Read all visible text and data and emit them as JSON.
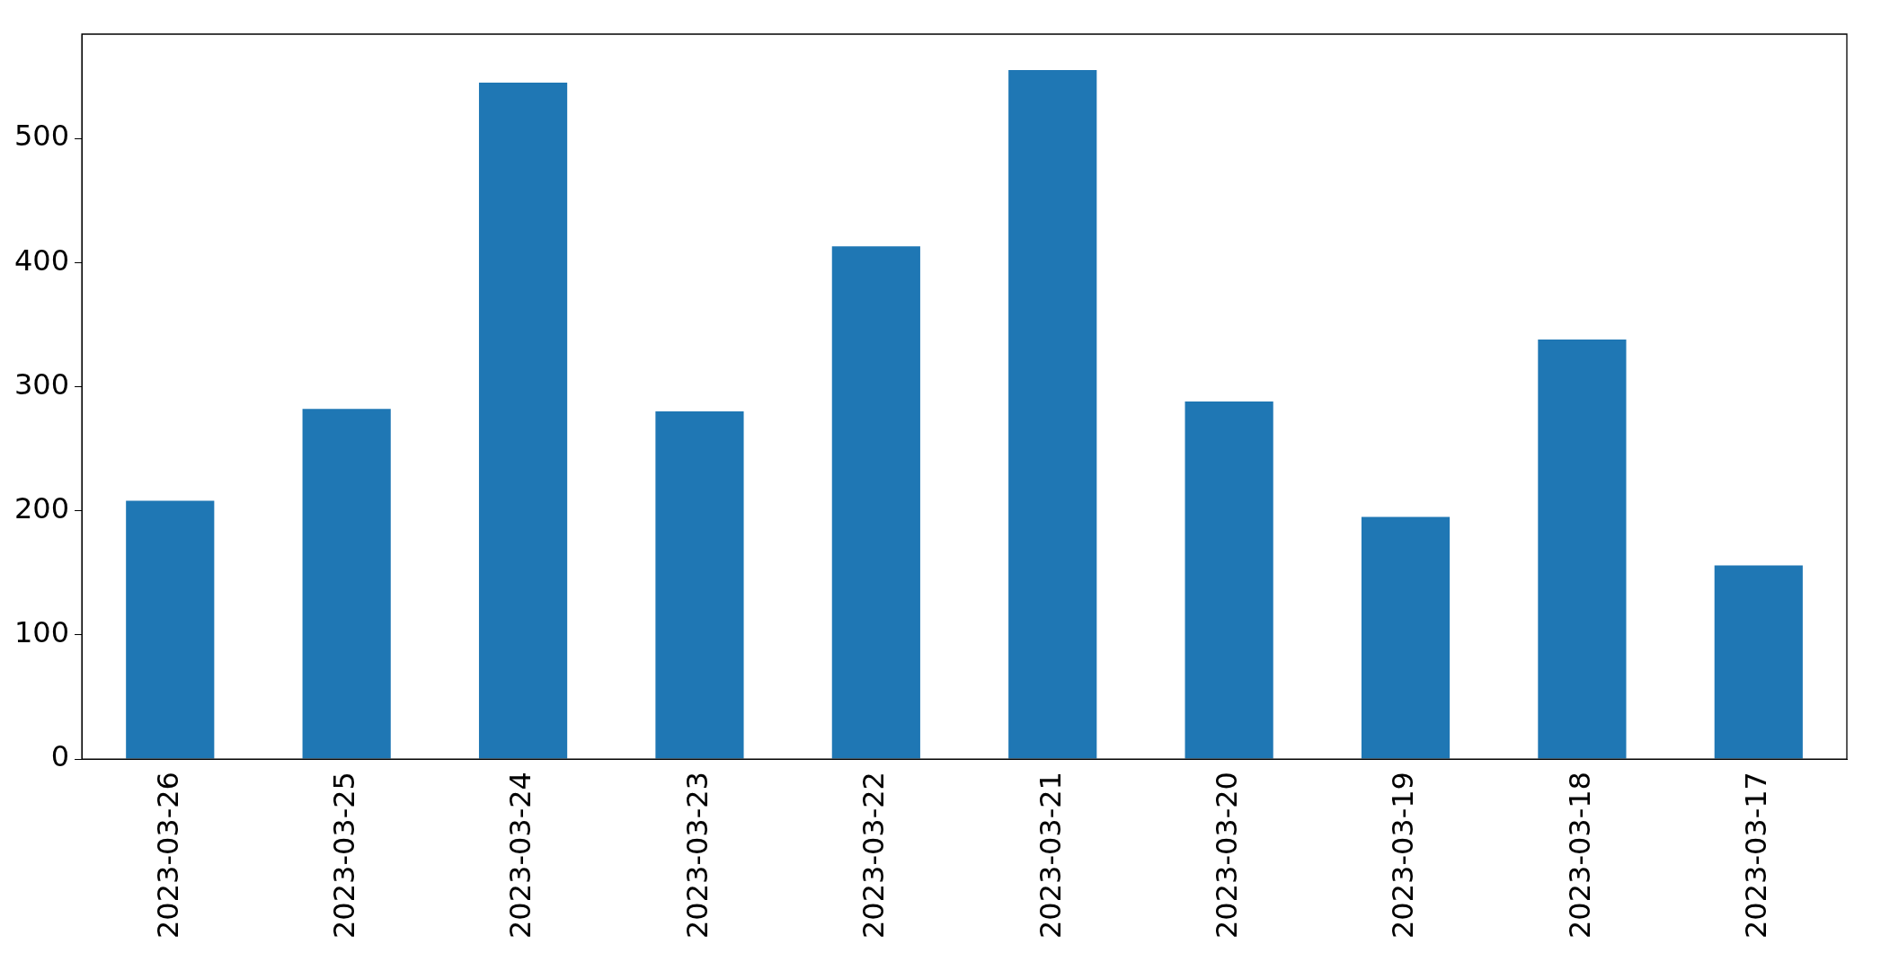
{
  "chart_data": {
    "type": "bar",
    "categories": [
      "2023-03-26",
      "2023-03-25",
      "2023-03-24",
      "2023-03-23",
      "2023-03-22",
      "2023-03-21",
      "2023-03-20",
      "2023-03-19",
      "2023-03-18",
      "2023-03-17"
    ],
    "values": [
      208,
      282,
      545,
      280,
      413,
      555,
      288,
      195,
      338,
      156
    ],
    "color": "#1f77b4",
    "ylim": [
      0,
      584
    ],
    "yticks": [
      0,
      100,
      200,
      300,
      400,
      500
    ],
    "grid": false,
    "legend": false
  }
}
